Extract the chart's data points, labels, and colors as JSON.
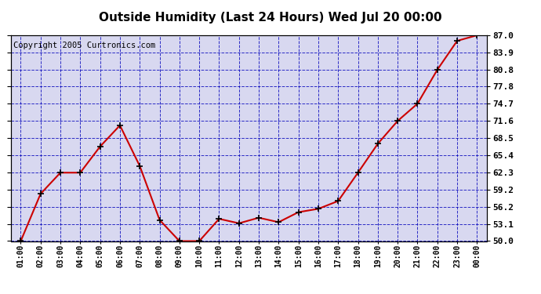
{
  "title": "Outside Humidity (Last 24 Hours) Wed Jul 20 00:00",
  "copyright": "Copyright 2005 Curtronics.com",
  "x_labels": [
    "01:00",
    "02:00",
    "03:00",
    "04:00",
    "05:00",
    "06:00",
    "07:00",
    "08:00",
    "09:00",
    "10:00",
    "11:00",
    "12:00",
    "13:00",
    "14:00",
    "15:00",
    "16:00",
    "17:00",
    "18:00",
    "19:00",
    "20:00",
    "21:00",
    "22:00",
    "23:00",
    "00:00"
  ],
  "x_values": [
    1,
    2,
    3,
    4,
    5,
    6,
    7,
    8,
    9,
    10,
    11,
    12,
    13,
    14,
    15,
    16,
    17,
    18,
    19,
    20,
    21,
    22,
    23,
    24
  ],
  "y_values": [
    50.0,
    58.5,
    62.3,
    62.3,
    67.0,
    70.8,
    63.5,
    53.8,
    50.0,
    50.0,
    54.0,
    53.2,
    54.2,
    53.4,
    55.2,
    55.8,
    57.2,
    62.3,
    67.5,
    71.6,
    74.7,
    80.8,
    86.0,
    87.0
  ],
  "ylim_min": 50.0,
  "ylim_max": 87.0,
  "yticks": [
    50.0,
    53.1,
    56.2,
    59.2,
    62.3,
    65.4,
    68.5,
    71.6,
    74.7,
    77.8,
    80.8,
    83.9,
    87.0
  ],
  "line_color": "#cc0000",
  "marker": "+",
  "marker_color": "#000000",
  "bg_color": "#ffffff",
  "plot_bg_color": "#d8d8f0",
  "grid_color": "#0000bb",
  "title_fontsize": 11,
  "copyright_fontsize": 7.5,
  "fig_width": 6.9,
  "fig_height": 3.75,
  "dpi": 100
}
